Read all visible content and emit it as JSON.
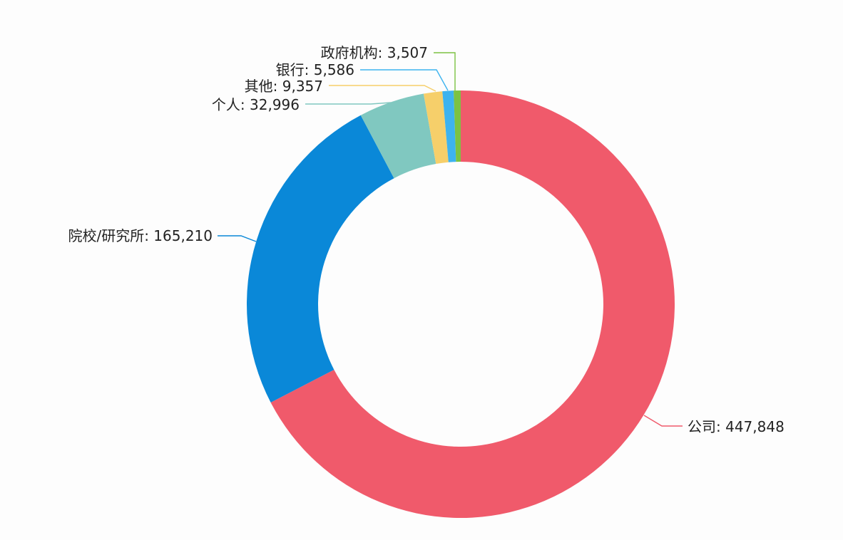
{
  "chart_data": {
    "type": "pie",
    "donut": true,
    "legend": "none",
    "slices": [
      {
        "label": "公司",
        "value": 447848,
        "display": "公司: 447,848",
        "color": "#f05a6b"
      },
      {
        "label": "院校/研究所",
        "value": 165210,
        "display": "院校/研究所: 165,210",
        "color": "#0a88d8"
      },
      {
        "label": "个人",
        "value": 32996,
        "display": "个人: 32,996",
        "color": "#80c8c0"
      },
      {
        "label": "其他",
        "value": 9357,
        "display": "其他: 9,357",
        "color": "#f6cf6a"
      },
      {
        "label": "银行",
        "value": 5586,
        "display": "银行: 5,586",
        "color": "#3db3ef"
      },
      {
        "label": "政府机构",
        "value": 3507,
        "display": "政府机构: 3,507",
        "color": "#7cc242"
      }
    ]
  }
}
